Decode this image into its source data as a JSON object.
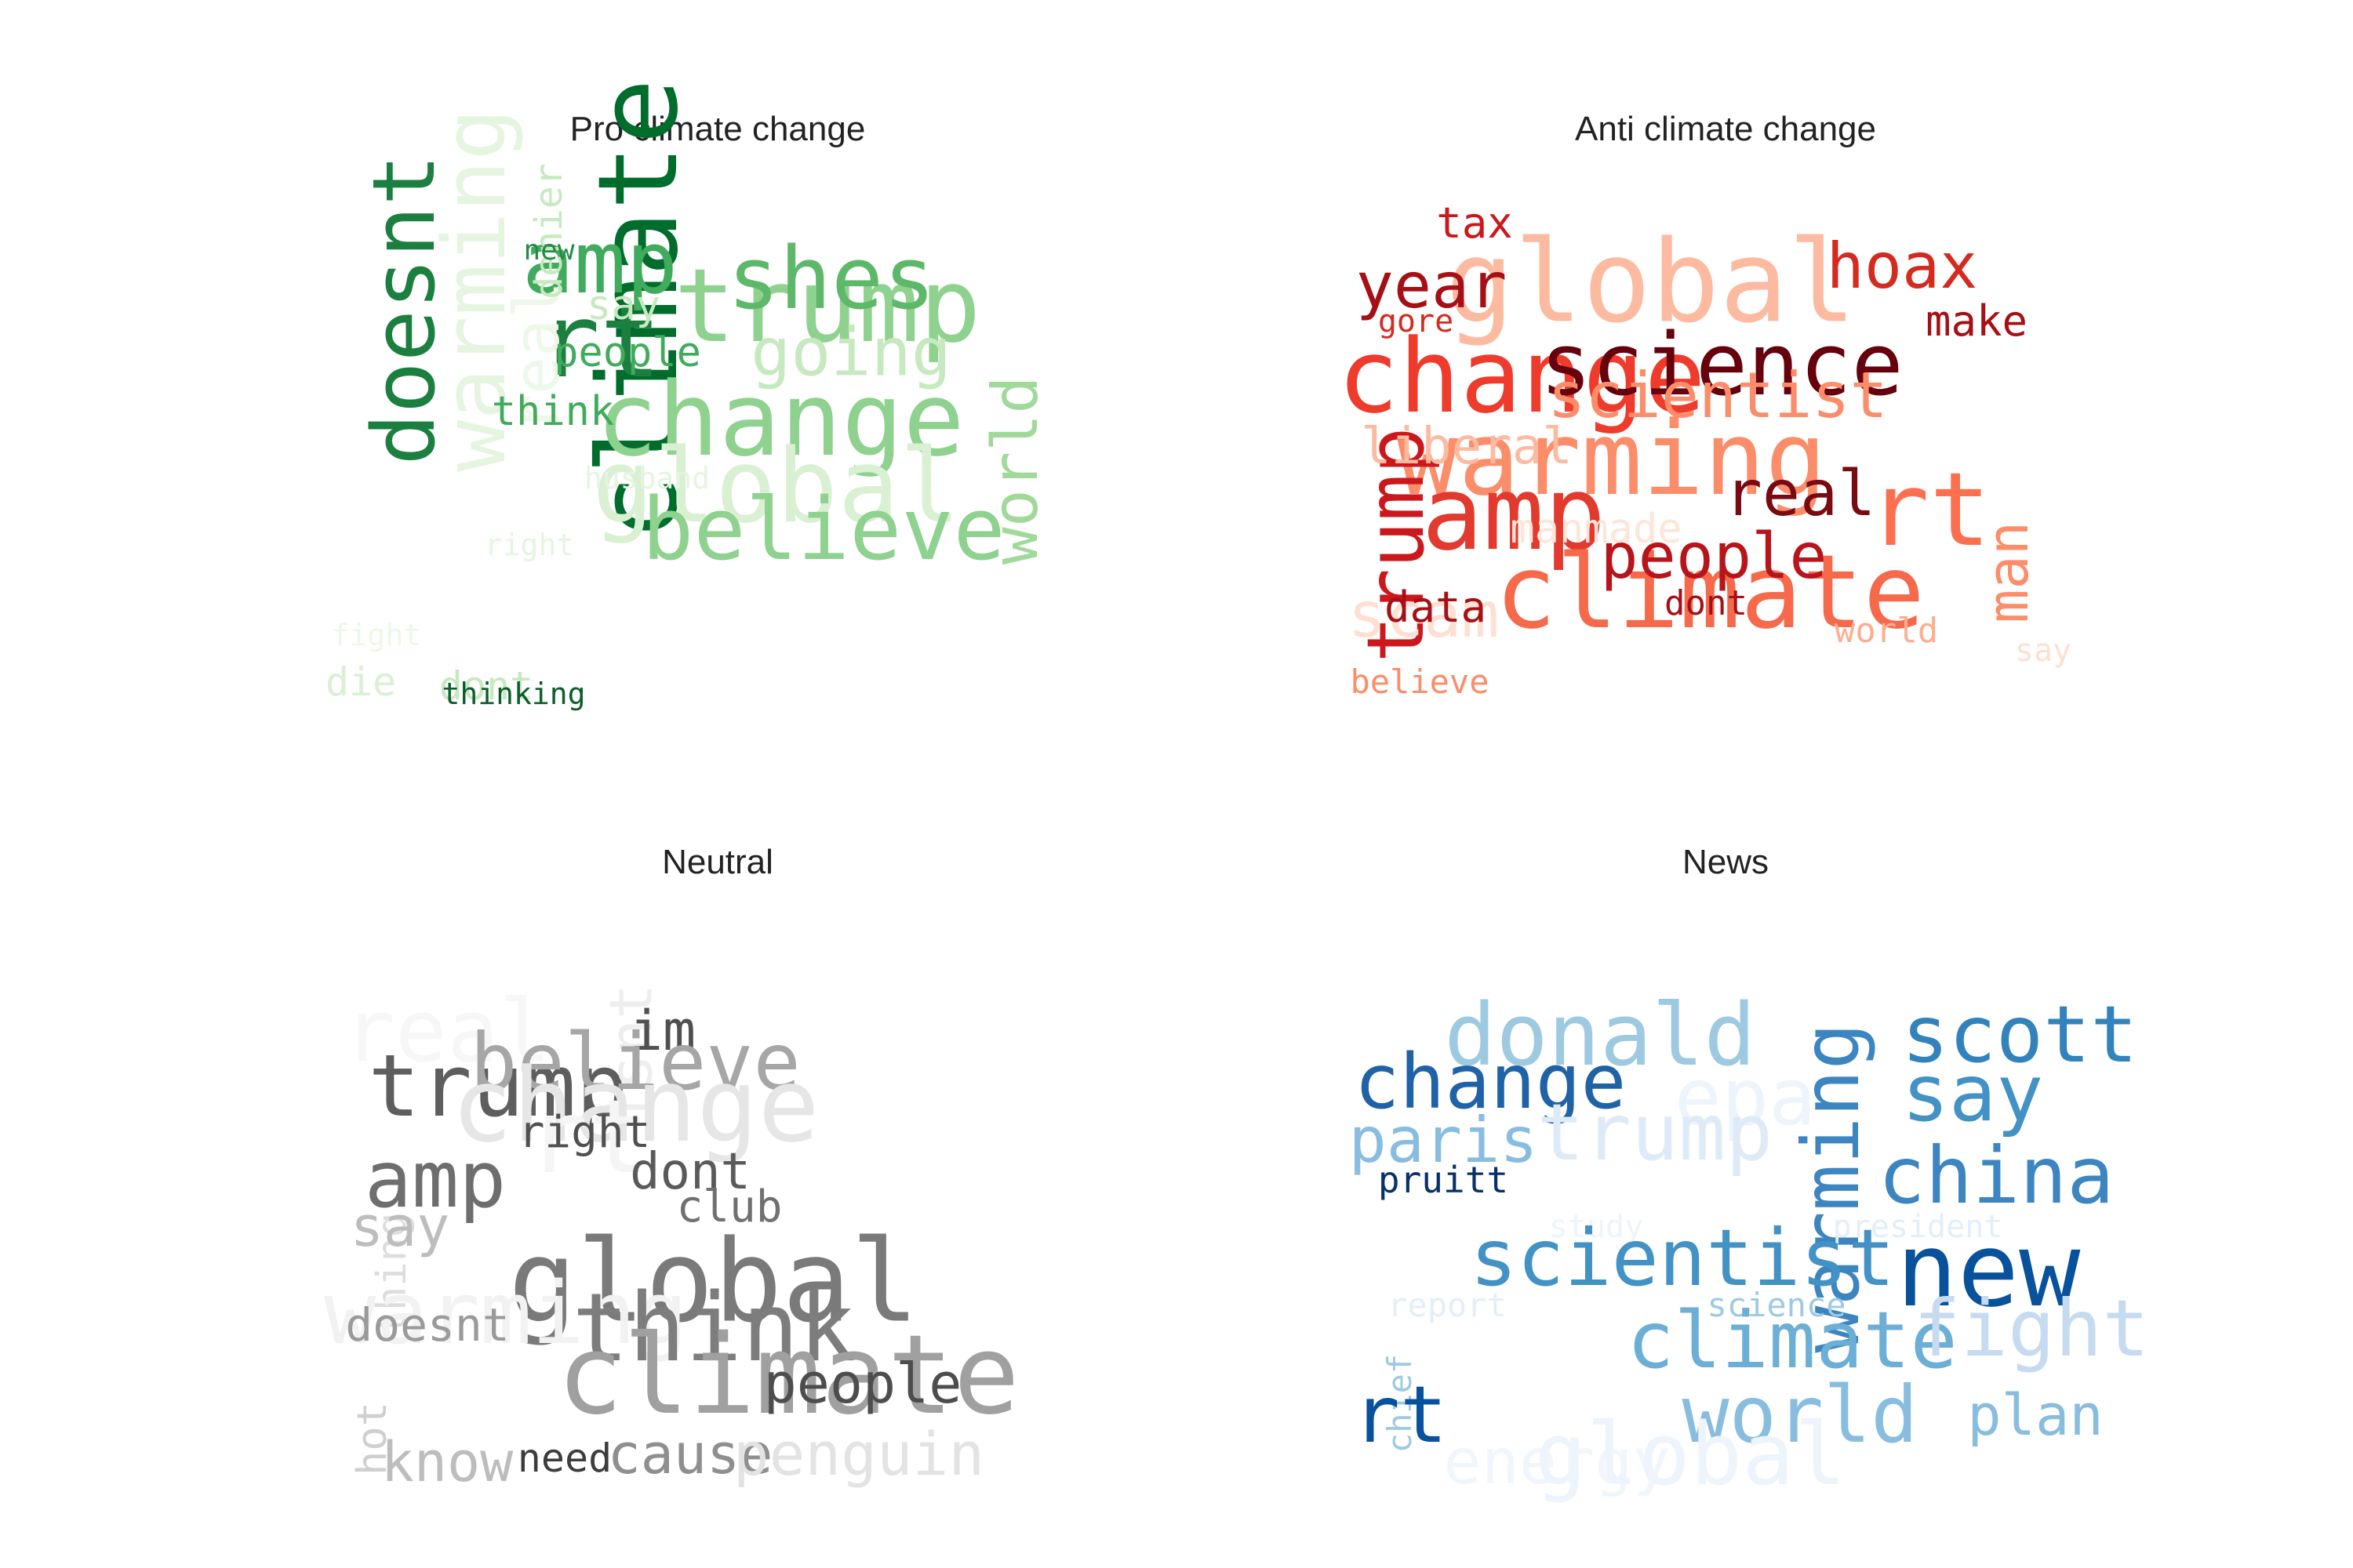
{
  "figure": {
    "panels": [
      {
        "title": "Pro climate change",
        "words": [
          {
            "text": "climate",
            "color": "#006d2c",
            "size": 140,
            "vertical": true
          },
          {
            "text": "doesnt",
            "color": "#1b7f3f",
            "size": 110,
            "vertical": true
          },
          {
            "text": "warming",
            "color": "#e5f5e0",
            "size": 110,
            "vertical": true
          },
          {
            "text": "trump",
            "color": "#8fd18e",
            "size": 130,
            "vertical": false
          },
          {
            "text": "change",
            "color": "#8fd18e",
            "size": 130,
            "vertical": false
          },
          {
            "text": "rt",
            "color": "#1b7f3f",
            "size": 130,
            "vertical": false
          },
          {
            "text": "global",
            "color": "#d9f0d3",
            "size": 130,
            "vertical": false
          },
          {
            "text": "believe",
            "color": "#8fd18e",
            "size": 110,
            "vertical": false
          },
          {
            "text": "amp",
            "color": "#41ab5d",
            "size": 110,
            "vertical": false
          },
          {
            "text": "shes",
            "color": "#5db86a",
            "size": 110,
            "vertical": false
          },
          {
            "text": "going",
            "color": "#c7e9c0",
            "size": 85,
            "vertical": false
          },
          {
            "text": "world",
            "color": "#a1d99b",
            "size": 80,
            "vertical": true
          },
          {
            "text": "real",
            "color": "#edf8e9",
            "size": 80,
            "vertical": true
          },
          {
            "text": "denier",
            "color": "#c7e9c0",
            "size": 48,
            "vertical": true
          },
          {
            "text": "people",
            "color": "#41ab5d",
            "size": 52,
            "vertical": false
          },
          {
            "text": "think",
            "color": "#41ab5d",
            "size": 52,
            "vertical": false
          },
          {
            "text": "say",
            "color": "#c7e9c0",
            "size": 52,
            "vertical": false
          },
          {
            "text": "new",
            "color": "#238b45",
            "size": 36,
            "vertical": false
          },
          {
            "text": "husband",
            "color": "#e5f5e0",
            "size": 38,
            "vertical": false
          },
          {
            "text": "right",
            "color": "#e5f5e0",
            "size": 38,
            "vertical": false
          },
          {
            "text": "fight",
            "color": "#edf8e9",
            "size": 38,
            "vertical": false
          },
          {
            "text": "die",
            "color": "#d9f0d3",
            "size": 50,
            "vertical": false
          },
          {
            "text": "dont",
            "color": "#c7e9c0",
            "size": 50,
            "vertical": false
          },
          {
            "text": "thinking",
            "color": "#0b5d2a",
            "size": 38,
            "vertical": false
          }
        ]
      },
      {
        "title": "Anti climate change",
        "words": [
          {
            "text": "global",
            "color": "#fcbba1",
            "size": 145,
            "vertical": false
          },
          {
            "text": "change",
            "color": "#ef3b2c",
            "size": 130,
            "vertical": false
          },
          {
            "text": "science",
            "color": "#67000d",
            "size": 110,
            "vertical": false
          },
          {
            "text": "warming",
            "color": "#fc8d6a",
            "size": 130,
            "vertical": false
          },
          {
            "text": "amp",
            "color": "#e23a2e",
            "size": 130,
            "vertical": false
          },
          {
            "text": "climate",
            "color": "#f6694a",
            "size": 130,
            "vertical": false
          },
          {
            "text": "rt",
            "color": "#fc7050",
            "size": 130,
            "vertical": false
          },
          {
            "text": "trump",
            "color": "#cb181d",
            "size": 100,
            "vertical": true
          },
          {
            "text": "scientist",
            "color": "#fc8d6a",
            "size": 80,
            "vertical": false
          },
          {
            "text": "year",
            "color": "#a50f15",
            "size": 80,
            "vertical": false
          },
          {
            "text": "hoax",
            "color": "#d42a20",
            "size": 80,
            "vertical": false
          },
          {
            "text": "people",
            "color": "#b8141b",
            "size": 80,
            "vertical": false
          },
          {
            "text": "real",
            "color": "#7a0a12",
            "size": 80,
            "vertical": false
          },
          {
            "text": "liberal",
            "color": "#fcbba1",
            "size": 64,
            "vertical": false
          },
          {
            "text": "man",
            "color": "#fc8d6a",
            "size": 72,
            "vertical": true
          },
          {
            "text": "manmade",
            "color": "#fee5d9",
            "size": 52,
            "vertical": false
          },
          {
            "text": "scam",
            "color": "#fee0d2",
            "size": 80,
            "vertical": false
          },
          {
            "text": "tax",
            "color": "#cb181d",
            "size": 54,
            "vertical": false
          },
          {
            "text": "make",
            "color": "#a50f15",
            "size": 54,
            "vertical": false
          },
          {
            "text": "gore",
            "color": "#d42a20",
            "size": 40,
            "vertical": false
          },
          {
            "text": "data",
            "color": "#a50f15",
            "size": 54,
            "vertical": false
          },
          {
            "text": "dont",
            "color": "#a50f15",
            "size": 44,
            "vertical": false
          },
          {
            "text": "world",
            "color": "#fcae91",
            "size": 44,
            "vertical": false
          },
          {
            "text": "say",
            "color": "#fee0d2",
            "size": 40,
            "vertical": false
          },
          {
            "text": "believe",
            "color": "#fc8d6a",
            "size": 42,
            "vertical": false
          }
        ]
      },
      {
        "title": "Neutral",
        "words": [
          {
            "text": "real",
            "color": "#f7f7f7",
            "size": 110,
            "vertical": false
          },
          {
            "text": "trump",
            "color": "#5e5e5e",
            "size": 110,
            "vertical": false
          },
          {
            "text": "amp",
            "color": "#6e6e6e",
            "size": 100,
            "vertical": false
          },
          {
            "text": "isnt",
            "color": "#eeeeee",
            "size": 75,
            "vertical": true
          },
          {
            "text": "im",
            "color": "#505050",
            "size": 70,
            "vertical": false
          },
          {
            "text": "believe",
            "color": "#a6a6a6",
            "size": 100,
            "vertical": false
          },
          {
            "text": "change",
            "color": "#e6e6e6",
            "size": 130,
            "vertical": false
          },
          {
            "text": "rt",
            "color": "#f5f5f5",
            "size": 130,
            "vertical": false
          },
          {
            "text": "thing",
            "color": "#dddddd",
            "size": 52,
            "vertical": true
          },
          {
            "text": "say",
            "color": "#bdbdbd",
            "size": 70,
            "vertical": false
          },
          {
            "text": "right",
            "color": "#505050",
            "size": 56,
            "vertical": false
          },
          {
            "text": "dont",
            "color": "#5a5a5a",
            "size": 64,
            "vertical": false
          },
          {
            "text": "club",
            "color": "#707070",
            "size": 56,
            "vertical": false
          },
          {
            "text": "global",
            "color": "#7a7a7a",
            "size": 145,
            "vertical": false
          },
          {
            "text": "warming",
            "color": "#f2f2f2",
            "size": 110,
            "vertical": false
          },
          {
            "text": "think",
            "color": "#7d7d7d",
            "size": 120,
            "vertical": false
          },
          {
            "text": "doesnt",
            "color": "#9a9a9a",
            "size": 58,
            "vertical": false
          },
          {
            "text": "climate",
            "color": "#a0a0a0",
            "size": 140,
            "vertical": false
          },
          {
            "text": "people",
            "color": "#4d4d4d",
            "size": 70,
            "vertical": false
          },
          {
            "text": "hot",
            "color": "#cfcfcf",
            "size": 52,
            "vertical": true
          },
          {
            "text": "know",
            "color": "#bdbdbd",
            "size": 70,
            "vertical": false
          },
          {
            "text": "need",
            "color": "#3c3c3c",
            "size": 50,
            "vertical": false
          },
          {
            "text": "cause",
            "color": "#8f8f8f",
            "size": 70,
            "vertical": false
          },
          {
            "text": "penguin",
            "color": "#e3e3e3",
            "size": 76,
            "vertical": false
          }
        ]
      },
      {
        "title": "News",
        "words": [
          {
            "text": "donald",
            "color": "#9ecae1",
            "size": 110,
            "vertical": false
          },
          {
            "text": "scott",
            "color": "#3182bd",
            "size": 100,
            "vertical": false
          },
          {
            "text": "change",
            "color": "#1f62a8",
            "size": 96,
            "vertical": false
          },
          {
            "text": "epa",
            "color": "#eef4fb",
            "size": 100,
            "vertical": false
          },
          {
            "text": "say",
            "color": "#4292c6",
            "size": 100,
            "vertical": false
          },
          {
            "text": "paris",
            "color": "#89bde0",
            "size": 80,
            "vertical": false
          },
          {
            "text": "trump",
            "color": "#deebf7",
            "size": 100,
            "vertical": false
          },
          {
            "text": "warming",
            "color": "#3d85c0",
            "size": 100,
            "vertical": true
          },
          {
            "text": "china",
            "color": "#3d85c0",
            "size": 100,
            "vertical": false
          },
          {
            "text": "pruitt",
            "color": "#08306b",
            "size": 46,
            "vertical": false
          },
          {
            "text": "study",
            "color": "#eef4fb",
            "size": 40,
            "vertical": false
          },
          {
            "text": "president",
            "color": "#e4eef8",
            "size": 40,
            "vertical": false
          },
          {
            "text": "scientist",
            "color": "#4292c6",
            "size": 100,
            "vertical": false
          },
          {
            "text": "new",
            "color": "#08519c",
            "size": 130,
            "vertical": false
          },
          {
            "text": "report",
            "color": "#e4eef8",
            "size": 42,
            "vertical": false
          },
          {
            "text": "science",
            "color": "#9ecae1",
            "size": 42,
            "vertical": false
          },
          {
            "text": "climate",
            "color": "#6baed6",
            "size": 100,
            "vertical": false
          },
          {
            "text": "fight",
            "color": "#c6dbef",
            "size": 100,
            "vertical": false
          },
          {
            "text": "chief",
            "color": "#9ecae1",
            "size": 42,
            "vertical": true
          },
          {
            "text": "rt",
            "color": "#08519c",
            "size": 100,
            "vertical": false
          },
          {
            "text": "world",
            "color": "#89bde0",
            "size": 100,
            "vertical": false
          },
          {
            "text": "plan",
            "color": "#89bde0",
            "size": 72,
            "vertical": false
          },
          {
            "text": "energy",
            "color": "#f1f6fc",
            "size": 80,
            "vertical": false
          },
          {
            "text": "global",
            "color": "#eef4fb",
            "size": 110,
            "vertical": false
          }
        ]
      }
    ]
  }
}
